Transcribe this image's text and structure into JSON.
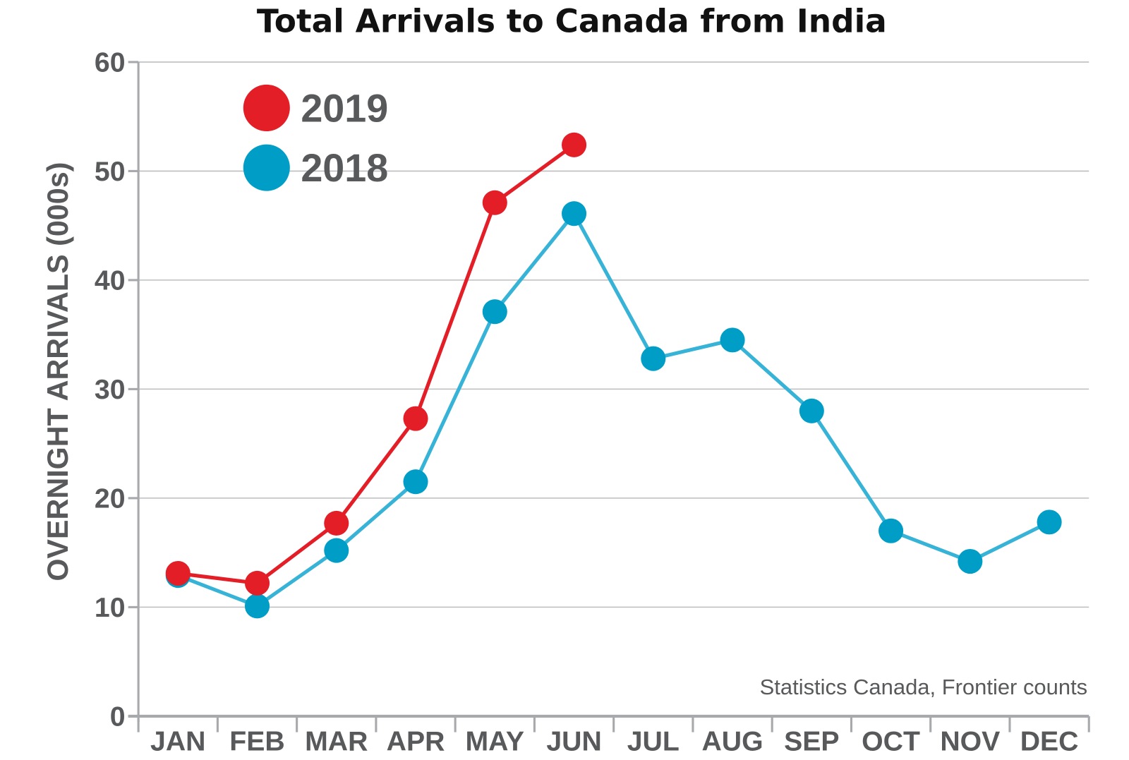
{
  "chart_data": {
    "type": "line",
    "title": "Total Arrivals to Canada from India",
    "ylabel": "OVERNIGHT ARRIVALS (000s)",
    "xlabel": "",
    "categories": [
      "JAN",
      "FEB",
      "MAR",
      "APR",
      "MAY",
      "JUN",
      "JUL",
      "AUG",
      "SEP",
      "OCT",
      "NOV",
      "DEC"
    ],
    "ylim": [
      0,
      60
    ],
    "yticks": [
      0,
      10,
      20,
      30,
      40,
      50,
      60
    ],
    "grid": true,
    "legend_position": "top-left",
    "series": [
      {
        "name": "2019",
        "color": "#e31e27",
        "values": [
          13.1,
          12.2,
          17.7,
          27.3,
          47.1,
          52.4,
          null,
          null,
          null,
          null,
          null,
          null
        ]
      },
      {
        "name": "2018",
        "color": "#009ec6",
        "line_color": "#36b3d6",
        "values": [
          12.9,
          10.1,
          15.2,
          21.5,
          37.1,
          46.1,
          32.8,
          34.5,
          28.0,
          17.0,
          14.2,
          17.8
        ]
      }
    ],
    "source": "Statistics Canada, Frontier counts"
  }
}
